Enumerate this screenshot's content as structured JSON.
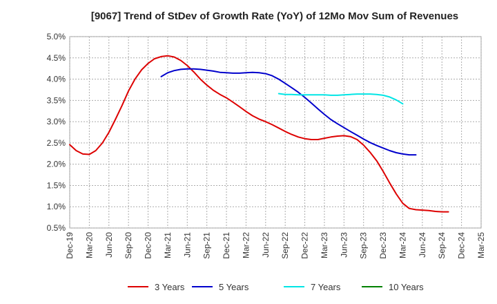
{
  "chart_data": {
    "type": "line",
    "title": "[9067]  Trend of StDev of Growth Rate (YoY) of 12Mo Mov Sum of Revenues",
    "xlabel": "",
    "ylabel": "",
    "x_ticks": [
      "Dec-19",
      "Mar-20",
      "Jun-20",
      "Sep-20",
      "Dec-20",
      "Mar-21",
      "Jun-21",
      "Sep-21",
      "Dec-21",
      "Mar-22",
      "Jun-22",
      "Sep-22",
      "Dec-22",
      "Mar-23",
      "Jun-23",
      "Sep-23",
      "Dec-23",
      "Mar-24",
      "Jun-24",
      "Sep-24",
      "Dec-24",
      "Mar-25"
    ],
    "y_ticks": [
      "0.5%",
      "1.0%",
      "1.5%",
      "2.0%",
      "2.5%",
      "3.0%",
      "3.5%",
      "4.0%",
      "4.5%",
      "5.0%"
    ],
    "ylim": [
      0.5,
      5.0
    ],
    "x_count": 22,
    "grid": true,
    "legend_position": "bottom",
    "series": [
      {
        "name": "3 Years",
        "color": "#dd0000",
        "points": [
          [
            0,
            2.46
          ],
          [
            0.33,
            2.32
          ],
          [
            0.67,
            2.24
          ],
          [
            1,
            2.23
          ],
          [
            1.33,
            2.32
          ],
          [
            1.67,
            2.5
          ],
          [
            2,
            2.75
          ],
          [
            2.33,
            3.05
          ],
          [
            2.67,
            3.38
          ],
          [
            3,
            3.72
          ],
          [
            3.33,
            4.0
          ],
          [
            3.67,
            4.22
          ],
          [
            4,
            4.37
          ],
          [
            4.33,
            4.48
          ],
          [
            4.67,
            4.53
          ],
          [
            5,
            4.55
          ],
          [
            5.33,
            4.52
          ],
          [
            5.67,
            4.44
          ],
          [
            6,
            4.32
          ],
          [
            6.33,
            4.17
          ],
          [
            6.67,
            4.0
          ],
          [
            7,
            3.86
          ],
          [
            7.33,
            3.74
          ],
          [
            7.67,
            3.64
          ],
          [
            8,
            3.56
          ],
          [
            8.33,
            3.46
          ],
          [
            8.67,
            3.35
          ],
          [
            9,
            3.24
          ],
          [
            9.33,
            3.14
          ],
          [
            9.67,
            3.06
          ],
          [
            10,
            3.0
          ],
          [
            10.33,
            2.93
          ],
          [
            10.67,
            2.85
          ],
          [
            11,
            2.77
          ],
          [
            11.33,
            2.7
          ],
          [
            11.67,
            2.64
          ],
          [
            12,
            2.6
          ],
          [
            12.33,
            2.58
          ],
          [
            12.67,
            2.58
          ],
          [
            13,
            2.61
          ],
          [
            13.33,
            2.64
          ],
          [
            13.67,
            2.66
          ],
          [
            14,
            2.67
          ],
          [
            14.33,
            2.65
          ],
          [
            14.67,
            2.58
          ],
          [
            15,
            2.45
          ],
          [
            15.33,
            2.28
          ],
          [
            15.67,
            2.08
          ],
          [
            16,
            1.83
          ],
          [
            16.33,
            1.56
          ],
          [
            16.67,
            1.3
          ],
          [
            17,
            1.08
          ],
          [
            17.33,
            0.96
          ],
          [
            17.67,
            0.93
          ],
          [
            18,
            0.92
          ],
          [
            18.33,
            0.91
          ],
          [
            18.67,
            0.89
          ],
          [
            19,
            0.88
          ],
          [
            19.33,
            0.88
          ]
        ]
      },
      {
        "name": "5 Years",
        "color": "#0000cc",
        "points": [
          [
            4.67,
            4.06
          ],
          [
            5,
            4.15
          ],
          [
            5.33,
            4.2
          ],
          [
            5.67,
            4.23
          ],
          [
            6,
            4.24
          ],
          [
            6.33,
            4.24
          ],
          [
            6.67,
            4.23
          ],
          [
            7,
            4.21
          ],
          [
            7.33,
            4.19
          ],
          [
            7.67,
            4.16
          ],
          [
            8,
            4.15
          ],
          [
            8.33,
            4.14
          ],
          [
            8.67,
            4.14
          ],
          [
            9,
            4.15
          ],
          [
            9.33,
            4.16
          ],
          [
            9.67,
            4.15
          ],
          [
            10,
            4.13
          ],
          [
            10.33,
            4.08
          ],
          [
            10.67,
            4.0
          ],
          [
            11,
            3.9
          ],
          [
            11.33,
            3.8
          ],
          [
            11.67,
            3.69
          ],
          [
            12,
            3.57
          ],
          [
            12.33,
            3.44
          ],
          [
            12.67,
            3.3
          ],
          [
            13,
            3.17
          ],
          [
            13.33,
            3.05
          ],
          [
            13.67,
            2.95
          ],
          [
            14,
            2.86
          ],
          [
            14.33,
            2.77
          ],
          [
            14.67,
            2.68
          ],
          [
            15,
            2.59
          ],
          [
            15.33,
            2.51
          ],
          [
            15.67,
            2.44
          ],
          [
            16,
            2.38
          ],
          [
            16.33,
            2.32
          ],
          [
            16.67,
            2.27
          ],
          [
            17,
            2.24
          ],
          [
            17.33,
            2.22
          ],
          [
            17.67,
            2.22
          ]
        ]
      },
      {
        "name": "7 Years",
        "color": "#00e5e5",
        "points": [
          [
            10.67,
            3.66
          ],
          [
            11,
            3.64
          ],
          [
            11.33,
            3.64
          ],
          [
            11.67,
            3.63
          ],
          [
            12,
            3.63
          ],
          [
            12.33,
            3.63
          ],
          [
            12.67,
            3.63
          ],
          [
            13,
            3.63
          ],
          [
            13.33,
            3.62
          ],
          [
            13.67,
            3.62
          ],
          [
            14,
            3.63
          ],
          [
            14.33,
            3.64
          ],
          [
            14.67,
            3.65
          ],
          [
            15,
            3.65
          ],
          [
            15.33,
            3.65
          ],
          [
            15.67,
            3.64
          ],
          [
            16,
            3.62
          ],
          [
            16.33,
            3.58
          ],
          [
            16.67,
            3.51
          ],
          [
            17,
            3.42
          ]
        ]
      },
      {
        "name": "10 Years",
        "color": "#008000",
        "points": []
      }
    ]
  }
}
